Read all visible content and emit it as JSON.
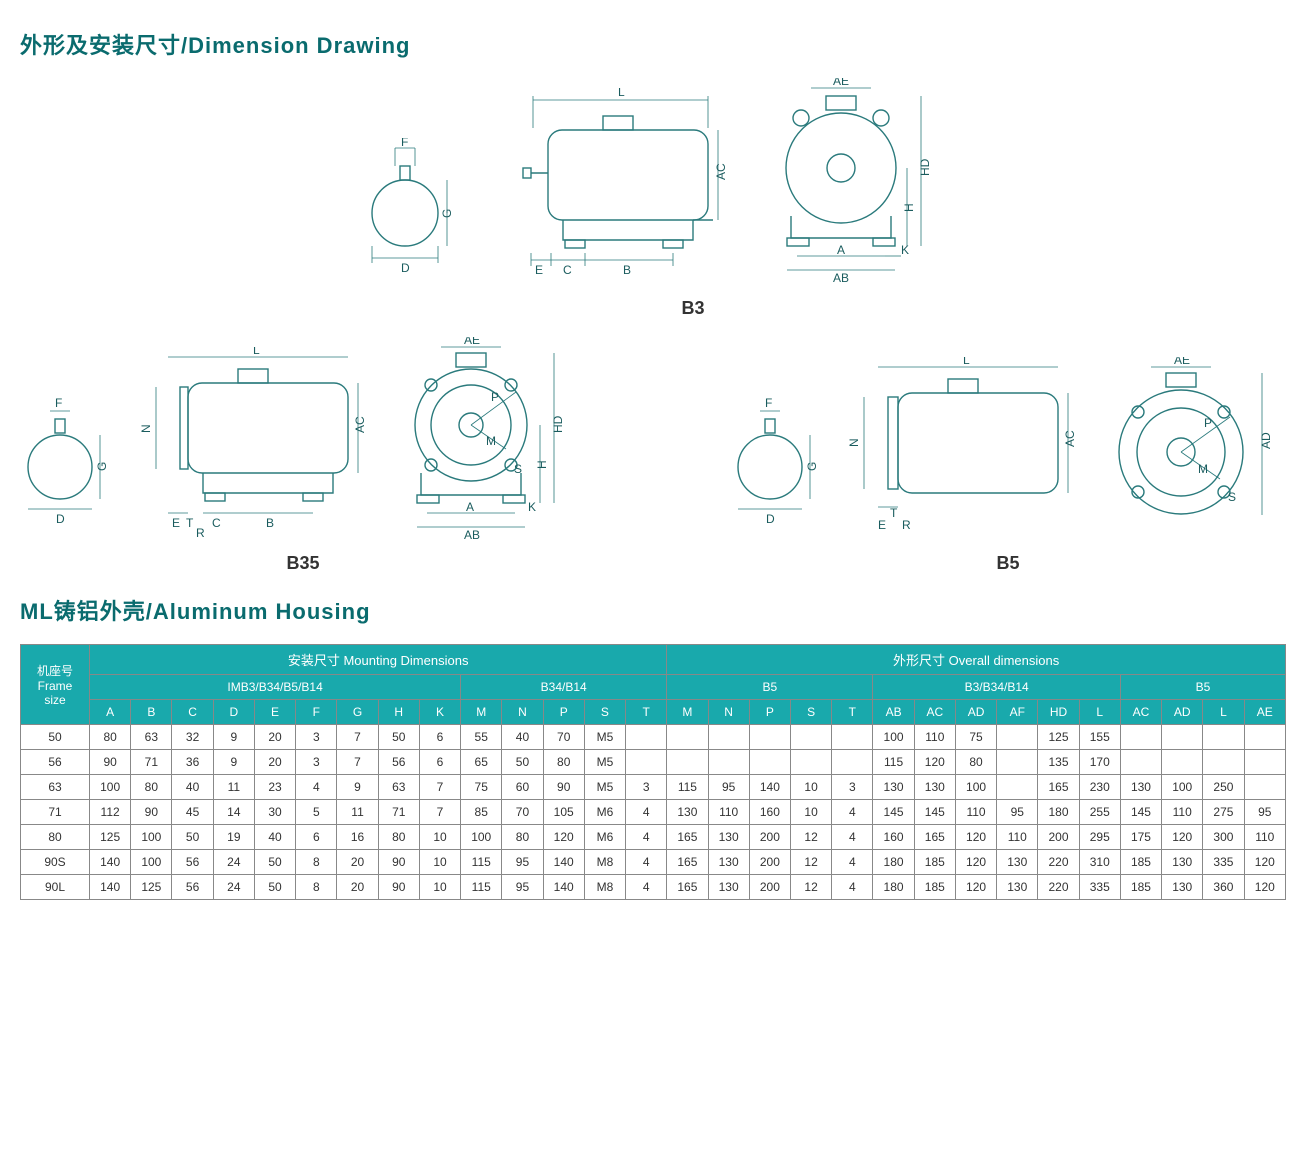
{
  "titles": {
    "dimension_drawing": "外形及安装尺寸/Dimension Drawing",
    "aluminum_housing": "ML铸铝外壳/Aluminum Housing"
  },
  "drawing_labels": {
    "b3": "B3",
    "b35": "B35",
    "b5": "B5"
  },
  "dim_letters": {
    "F": "F",
    "G": "G",
    "D": "D",
    "L": "L",
    "AC": "AC",
    "E": "E",
    "C": "C",
    "B": "B",
    "AE": "AE",
    "HD": "HD",
    "H": "H",
    "A": "A",
    "K": "K",
    "AB": "AB",
    "N": "N",
    "P": "P",
    "M": "M",
    "S": "S",
    "T": "T",
    "R": "R",
    "AD": "AD"
  },
  "table": {
    "header_rows": {
      "frame": "机座号\nFrame\nsize",
      "mounting": "安装尺寸 Mounting Dimensions",
      "overall": "外形尺寸 Overall dimensions",
      "imb3": "IMB3/B34/B5/B14",
      "b34b14": "B34/B14",
      "b5": "B5",
      "b3b34b14": "B3/B34/B14",
      "b5_r": "B5"
    },
    "columns": [
      "A",
      "B",
      "C",
      "D",
      "E",
      "F",
      "G",
      "H",
      "K",
      "M",
      "N",
      "P",
      "S",
      "T",
      "M",
      "N",
      "P",
      "S",
      "T",
      "AB",
      "AC",
      "AD",
      "AF",
      "HD",
      "L",
      "AC",
      "AD",
      "L",
      "AE"
    ],
    "rows": [
      {
        "frame": "50",
        "cells": [
          "80",
          "63",
          "32",
          "9",
          "20",
          "3",
          "7",
          "50",
          "6",
          "55",
          "40",
          "70",
          "M5",
          "",
          "",
          "",
          "",
          "",
          "",
          "100",
          "110",
          "75",
          "",
          "125",
          "155",
          "",
          "",
          "",
          ""
        ]
      },
      {
        "frame": "56",
        "cells": [
          "90",
          "71",
          "36",
          "9",
          "20",
          "3",
          "7",
          "56",
          "6",
          "65",
          "50",
          "80",
          "M5",
          "",
          "",
          "",
          "",
          "",
          "",
          "115",
          "120",
          "80",
          "",
          "135",
          "170",
          "",
          "",
          "",
          ""
        ]
      },
      {
        "frame": "63",
        "cells": [
          "100",
          "80",
          "40",
          "11",
          "23",
          "4",
          "9",
          "63",
          "7",
          "75",
          "60",
          "90",
          "M5",
          "3",
          "115",
          "95",
          "140",
          "10",
          "3",
          "130",
          "130",
          "100",
          "",
          "165",
          "230",
          "130",
          "100",
          "250",
          ""
        ]
      },
      {
        "frame": "71",
        "cells": [
          "112",
          "90",
          "45",
          "14",
          "30",
          "5",
          "11",
          "71",
          "7",
          "85",
          "70",
          "105",
          "M6",
          "4",
          "130",
          "110",
          "160",
          "10",
          "4",
          "145",
          "145",
          "110",
          "95",
          "180",
          "255",
          "145",
          "110",
          "275",
          "95"
        ]
      },
      {
        "frame": "80",
        "cells": [
          "125",
          "100",
          "50",
          "19",
          "40",
          "6",
          "16",
          "80",
          "10",
          "100",
          "80",
          "120",
          "M6",
          "4",
          "165",
          "130",
          "200",
          "12",
          "4",
          "160",
          "165",
          "120",
          "110",
          "200",
          "295",
          "175",
          "120",
          "300",
          "110"
        ]
      },
      {
        "frame": "90S",
        "cells": [
          "140",
          "100",
          "56",
          "24",
          "50",
          "8",
          "20",
          "90",
          "10",
          "115",
          "95",
          "140",
          "M8",
          "4",
          "165",
          "130",
          "200",
          "12",
          "4",
          "180",
          "185",
          "120",
          "130",
          "220",
          "310",
          "185",
          "130",
          "335",
          "120"
        ]
      },
      {
        "frame": "90L",
        "cells": [
          "140",
          "125",
          "56",
          "24",
          "50",
          "8",
          "20",
          "90",
          "10",
          "115",
          "95",
          "140",
          "M8",
          "4",
          "165",
          "130",
          "200",
          "12",
          "4",
          "180",
          "185",
          "120",
          "130",
          "220",
          "335",
          "185",
          "130",
          "360",
          "120"
        ]
      }
    ]
  },
  "style": {
    "heading_color": "#0a6b6e",
    "table_header_bg": "#19a9ac",
    "table_header_fg": "#ffffff",
    "line_color": "#2a7a7c"
  }
}
